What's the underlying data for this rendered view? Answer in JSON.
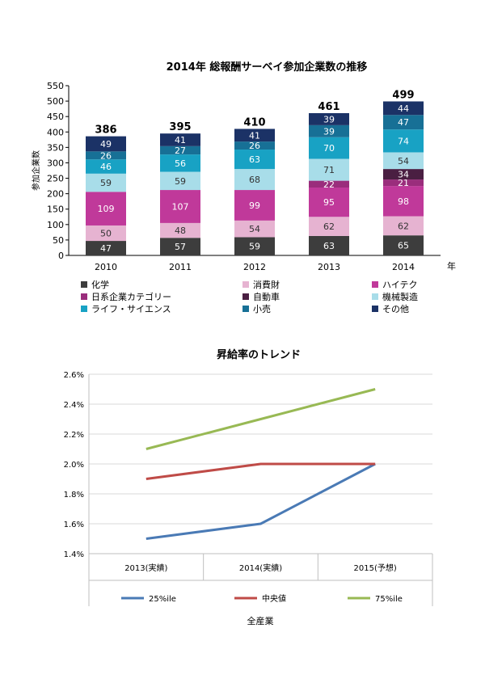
{
  "chart_data": [
    {
      "type": "bar",
      "stacked": true,
      "title": "2014年 総報酬サーベイ参加企業数の推移",
      "ylabel": "参加企業数",
      "xlabel": "年",
      "ylim": [
        0,
        550
      ],
      "yticks": [
        0,
        50,
        100,
        150,
        200,
        250,
        300,
        350,
        400,
        450,
        500,
        550
      ],
      "categories": [
        "2010",
        "2011",
        "2012",
        "2013",
        "2014"
      ],
      "totals": [
        386,
        395,
        410,
        461,
        499
      ],
      "series": [
        {
          "name": "化学",
          "color": "#3d3d3d",
          "values": [
            47,
            57,
            59,
            63,
            65
          ]
        },
        {
          "name": "消費財",
          "color": "#e6b3d1",
          "values": [
            50,
            48,
            54,
            62,
            62
          ]
        },
        {
          "name": "ハイテク",
          "color": "#c0399a",
          "values": [
            109,
            107,
            99,
            95,
            98
          ]
        },
        {
          "name": "日系企業カテゴリー",
          "color": "#9a2d7c",
          "values": [
            null,
            null,
            null,
            22,
            21
          ]
        },
        {
          "name": "自動車",
          "color": "#4a1f42",
          "values": [
            null,
            null,
            null,
            null,
            34
          ]
        },
        {
          "name": "機械製造",
          "color": "#a8dde9",
          "values": [
            59,
            59,
            68,
            71,
            54
          ]
        },
        {
          "name": "ライフ・サイエンス",
          "color": "#18a2c4",
          "values": [
            46,
            56,
            63,
            70,
            74
          ]
        },
        {
          "name": "小売",
          "color": "#177096",
          "values": [
            26,
            27,
            26,
            39,
            47
          ]
        },
        {
          "name": "その他",
          "color": "#1b3266",
          "values": [
            49,
            41,
            41,
            39,
            44
          ]
        }
      ],
      "legend_order": [
        "化学",
        "消費財",
        "ハイテク",
        "日系企業カテゴリー",
        "自動車",
        "機械製造",
        "ライフ・サイエンス",
        "小売",
        "その他"
      ]
    },
    {
      "type": "line",
      "title": "昇給率のトレンド",
      "xlabel": "全産業",
      "categories": [
        "2013(実績)",
        "2014(実績)",
        "2015(予想)"
      ],
      "ylim": [
        1.4,
        2.6
      ],
      "yticks": [
        "1.4%",
        "1.6%",
        "1.8%",
        "2.0%",
        "2.2%",
        "2.4%",
        "2.6%"
      ],
      "series": [
        {
          "name": "25%ile",
          "color": "#4a7ab5",
          "values": [
            1.5,
            1.6,
            2.0
          ]
        },
        {
          "name": "中央値",
          "color": "#bf4b47",
          "values": [
            1.9,
            2.0,
            2.0
          ]
        },
        {
          "name": "75%ile",
          "color": "#98b954",
          "values": [
            2.1,
            2.3,
            2.5
          ]
        }
      ]
    }
  ]
}
